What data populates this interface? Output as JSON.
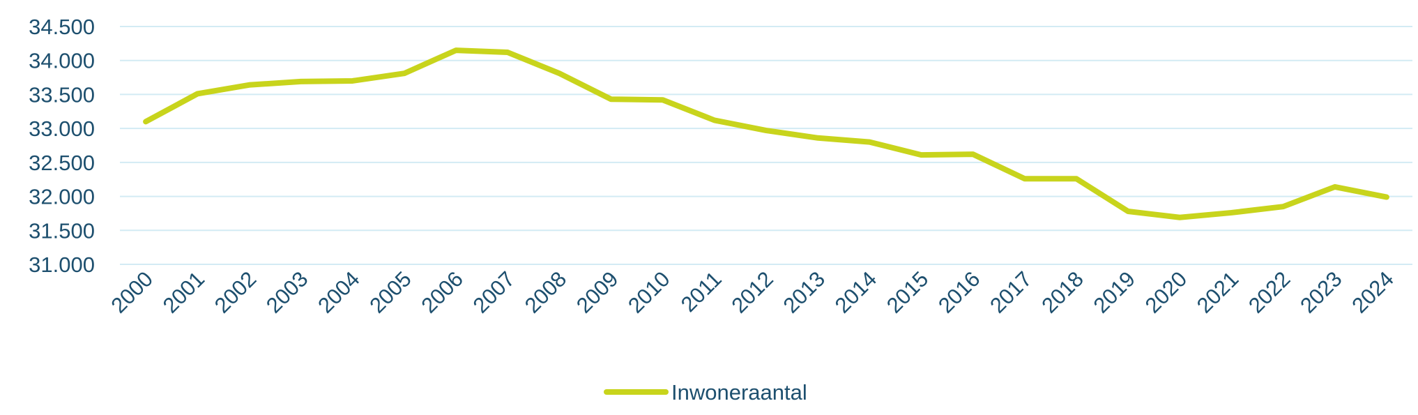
{
  "chart_data": {
    "type": "line",
    "categories": [
      "2000",
      "2001",
      "2002",
      "2003",
      "2004",
      "2005",
      "2006",
      "2007",
      "2008",
      "2009",
      "2010",
      "2011",
      "2012",
      "2013",
      "2014",
      "2015",
      "2016",
      "2017",
      "2018",
      "2019",
      "2020",
      "2021",
      "2022",
      "2023",
      "2024"
    ],
    "series": [
      {
        "name": "Inwoneraantal",
        "color": "#c8d41c",
        "values": [
          33100,
          33510,
          33640,
          33690,
          33700,
          33810,
          34150,
          34120,
          33810,
          33430,
          33420,
          33120,
          32970,
          32860,
          32800,
          32610,
          32620,
          32260,
          32260,
          31780,
          31690,
          31760,
          31850,
          32140,
          31990
        ]
      }
    ],
    "ylim": [
      31000,
      34500
    ],
    "yticks": [
      {
        "value": 31000,
        "label": "31.000"
      },
      {
        "value": 31500,
        "label": "31.500"
      },
      {
        "value": 32000,
        "label": "32.000"
      },
      {
        "value": 32500,
        "label": "32.500"
      },
      {
        "value": 33000,
        "label": "33.000"
      },
      {
        "value": 33500,
        "label": "33.500"
      },
      {
        "value": 34000,
        "label": "34.000"
      },
      {
        "value": 34500,
        "label": "34.500"
      }
    ],
    "grid": true,
    "legend": "bottom"
  }
}
